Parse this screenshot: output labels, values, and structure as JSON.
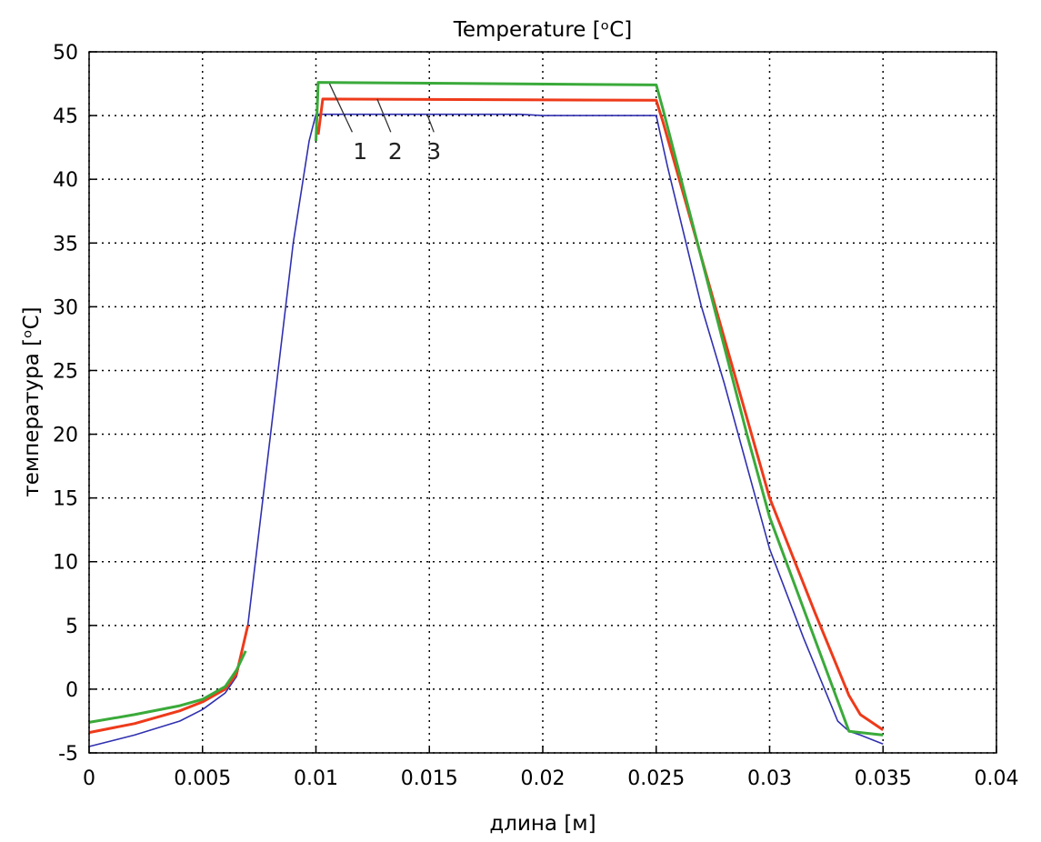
{
  "chart_data": {
    "type": "line",
    "title": "Temperature [ᵒC]",
    "xlabel": "длина [м]",
    "ylabel": "температура [ᵒC]",
    "xlim": [
      0,
      0.04
    ],
    "ylim": [
      -5,
      50
    ],
    "xticks": [
      "0",
      "0.005",
      "0.01",
      "0.015",
      "0.02",
      "0.025",
      "0.03",
      "0.035",
      "0.04"
    ],
    "yticks": [
      "-5",
      "0",
      "5",
      "10",
      "15",
      "20",
      "25",
      "30",
      "35",
      "40",
      "45",
      "50"
    ],
    "grid": true,
    "series": [
      {
        "color": "#3030b0",
        "points": [
          [
            0,
            -4.5
          ],
          [
            0.002,
            -3.6
          ],
          [
            0.004,
            -2.5
          ],
          [
            0.005,
            -1.6
          ],
          [
            0.006,
            -0.3
          ],
          [
            0.0065,
            1
          ],
          [
            0.007,
            5
          ],
          [
            0.008,
            20
          ],
          [
            0.009,
            35
          ],
          [
            0.0097,
            43
          ],
          [
            0.01,
            45.1
          ],
          [
            0.019,
            45.1
          ],
          [
            0.02,
            45
          ],
          [
            0.025,
            45
          ],
          [
            0.0255,
            41
          ],
          [
            0.027,
            30
          ],
          [
            0.028,
            24
          ],
          [
            0.03,
            11
          ],
          [
            0.0315,
            4
          ],
          [
            0.033,
            -2.5
          ],
          [
            0.0335,
            -3.3
          ],
          [
            0.034,
            -3.6
          ],
          [
            0.035,
            -4.3
          ]
        ]
      },
      {
        "color": "#ee3a1a",
        "points": [
          [
            0,
            -3.4
          ],
          [
            0.002,
            -2.7
          ],
          [
            0.004,
            -1.7
          ],
          [
            0.005,
            -1
          ],
          [
            0.006,
            0
          ],
          [
            0.0065,
            1.2
          ],
          [
            0.007,
            5
          ],
          null,
          [
            0.0101,
            43.5
          ],
          [
            0.0103,
            46.3
          ],
          [
            0.025,
            46.2
          ],
          [
            0.0253,
            44.5
          ],
          [
            0.03,
            15
          ],
          [
            0.032,
            6
          ],
          [
            0.0335,
            -0.5
          ],
          [
            0.034,
            -2
          ],
          [
            0.035,
            -3.2
          ]
        ]
      },
      {
        "color": "#3aaa3a",
        "points": [
          [
            0,
            -2.6
          ],
          [
            0.002,
            -2
          ],
          [
            0.004,
            -1.3
          ],
          [
            0.005,
            -0.8
          ],
          [
            0.006,
            0.2
          ],
          [
            0.0065,
            1.5
          ],
          [
            0.0069,
            3
          ],
          null,
          [
            0.01,
            43
          ],
          [
            0.0101,
            47.6
          ],
          [
            0.025,
            47.4
          ],
          [
            0.0253,
            45.5
          ],
          [
            0.029,
            20
          ],
          [
            0.03,
            13.5
          ],
          [
            0.0335,
            -3.3
          ],
          [
            0.035,
            -3.6
          ]
        ]
      }
    ],
    "annotations": [
      {
        "text": "1",
        "at": [
          0.01195,
          41.6
        ],
        "from": [
          0.0106,
          47.5
        ],
        "to": [
          0.0116,
          43.7
        ]
      },
      {
        "text": "2",
        "at": [
          0.0135,
          41.6
        ],
        "from": [
          0.0127,
          46.3
        ],
        "to": [
          0.0133,
          43.7
        ]
      },
      {
        "text": "3",
        "at": [
          0.0152,
          41.6
        ],
        "from": [
          0.0149,
          45.1
        ],
        "to": [
          0.0152,
          43.7
        ]
      }
    ]
  }
}
